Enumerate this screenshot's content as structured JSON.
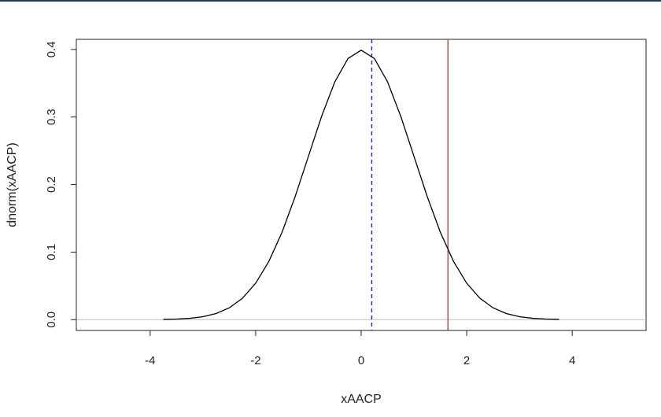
{
  "chart_data": {
    "type": "line",
    "title": "",
    "xlabel": "xAACP",
    "ylabel": "dnorm(xAACP)",
    "xlim": [
      -5.4,
      5.4
    ],
    "ylim": [
      -0.016,
      0.415
    ],
    "xticks": [
      -4,
      -2,
      0,
      2,
      4
    ],
    "xtick_labels": [
      "-4",
      "-2",
      "0",
      "2",
      "4"
    ],
    "yticks": [
      0.0,
      0.1,
      0.2,
      0.3,
      0.4
    ],
    "ytick_labels": [
      "0.0",
      "0.1",
      "0.2",
      "0.3",
      "0.4"
    ],
    "grid": false,
    "series": [
      {
        "color": "#000000",
        "x": [
          -3.75,
          -3.5,
          -3.25,
          -3.0,
          -2.75,
          -2.5,
          -2.25,
          -2.0,
          -1.75,
          -1.5,
          -1.25,
          -1.0,
          -0.75,
          -0.5,
          -0.25,
          0.0,
          0.25,
          0.5,
          0.75,
          1.0,
          1.25,
          1.5,
          1.75,
          2.0,
          2.25,
          2.5,
          2.75,
          3.0,
          3.25,
          3.5,
          3.75
        ],
        "y": [
          0.0004,
          0.0009,
          0.002,
          0.0044,
          0.0091,
          0.0175,
          0.0317,
          0.054,
          0.0863,
          0.1295,
          0.1826,
          0.242,
          0.3011,
          0.3521,
          0.3867,
          0.3989,
          0.3867,
          0.3521,
          0.3011,
          0.242,
          0.1826,
          0.1295,
          0.0863,
          0.054,
          0.0317,
          0.0175,
          0.0091,
          0.0044,
          0.002,
          0.0009,
          0.0004
        ]
      }
    ],
    "reference_lines": [
      {
        "orientation": "horizontal",
        "value": 0.0,
        "color": "#bbbbbb",
        "style": "solid"
      },
      {
        "orientation": "vertical",
        "value": 0.2,
        "color": "#2222cc",
        "style": "dashed"
      },
      {
        "orientation": "vertical",
        "value": 1.645,
        "color": "#e0302a",
        "style": "solid"
      }
    ]
  }
}
